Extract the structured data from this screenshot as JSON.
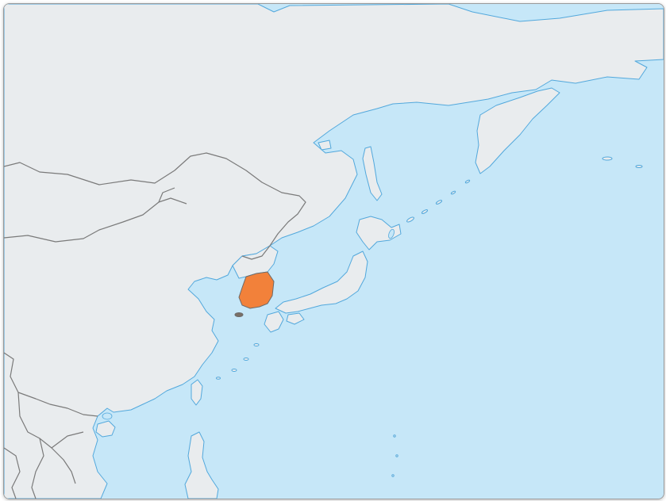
{
  "map": {
    "highlighted_region": "South Korea",
    "colors": {
      "ocean": "#c6e7f8",
      "land": "#e9ecee",
      "coast": "#52a8dc",
      "border": "#7a7a7a",
      "highlight": "#f2813a",
      "highlight_border": "#6b6b6b"
    }
  }
}
